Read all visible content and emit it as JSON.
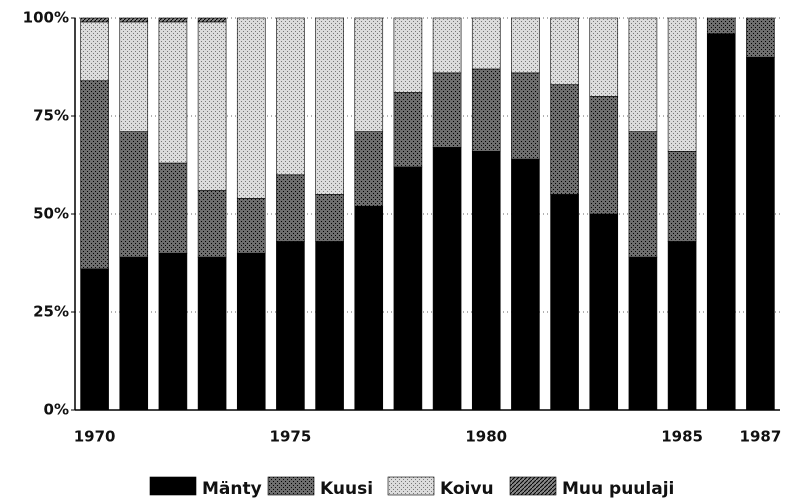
{
  "chart_data": {
    "type": "stacked_bar",
    "categories": [
      "1970",
      null,
      null,
      null,
      null,
      "1975",
      null,
      null,
      null,
      null,
      "1980",
      null,
      null,
      null,
      null,
      "1985",
      null,
      "1987"
    ],
    "series": [
      {
        "name": "Mänty",
        "color": "#000000",
        "values": [
          36,
          39,
          40,
          39,
          40,
          43,
          43,
          52,
          62,
          67,
          66,
          64,
          55,
          50,
          39,
          43,
          96,
          90
        ]
      },
      {
        "name": "Kuusi",
        "color": "#6e6e6e",
        "values": [
          48,
          32,
          23,
          17,
          14,
          17,
          12,
          19,
          19,
          19,
          21,
          22,
          28,
          30,
          32,
          23,
          4,
          10
        ]
      },
      {
        "name": "Koivu",
        "color": "#dcdcdc",
        "values": [
          15,
          28,
          36,
          43,
          46,
          40,
          45,
          29,
          19,
          14,
          13,
          14,
          17,
          20,
          29,
          34,
          0,
          0
        ]
      },
      {
        "name": "Muu puulaji",
        "color": "#8a8a8a",
        "values": [
          1,
          1,
          1,
          1,
          0,
          0,
          0,
          0,
          0,
          0,
          0,
          0,
          0,
          0,
          0,
          0,
          0,
          0
        ]
      }
    ],
    "ylim": [
      0,
      100
    ],
    "yticks": [
      {
        "value": 0,
        "label": "0%"
      },
      {
        "value": 25,
        "label": "25%"
      },
      {
        "value": 50,
        "label": "50%"
      },
      {
        "value": 75,
        "label": "75%"
      },
      {
        "value": 100,
        "label": "100%"
      }
    ],
    "grid": true,
    "legend": "bottom"
  }
}
